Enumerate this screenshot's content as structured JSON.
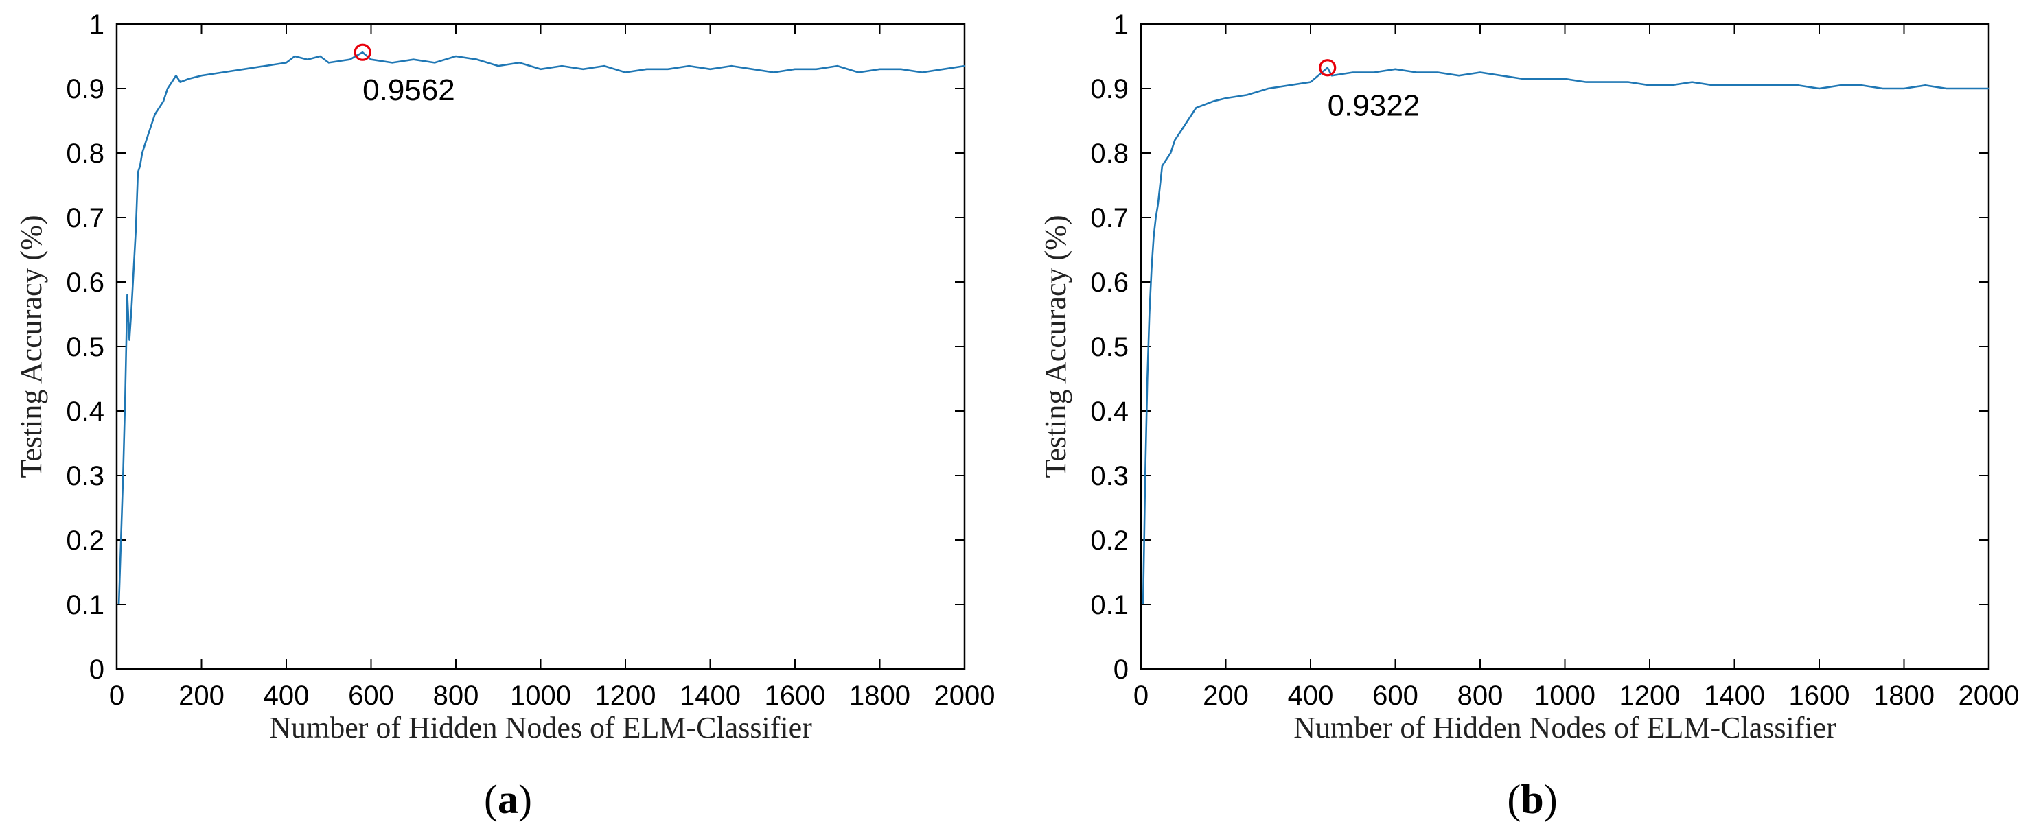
{
  "chart_data": [
    {
      "type": "line",
      "panel": "a",
      "caption": "(a)",
      "xlabel": "Number of Hidden Nodes of ELM-Classifier",
      "ylabel": "Testing Accuracy (%)",
      "xlim": [
        0,
        2000
      ],
      "ylim": [
        0,
        1
      ],
      "xticks": [
        0,
        200,
        400,
        600,
        800,
        1000,
        1200,
        1400,
        1600,
        1800,
        2000
      ],
      "yticks": [
        0,
        0.1,
        0.2,
        0.3,
        0.4,
        0.5,
        0.6,
        0.7,
        0.8,
        0.9,
        1
      ],
      "xtick_labels": [
        "0",
        "200",
        "400",
        "600",
        "800",
        "1000",
        "1200",
        "1400",
        "1600",
        "1800",
        "2000"
      ],
      "ytick_labels": [
        "0",
        "0.1",
        "0.2",
        "0.3",
        "0.4",
        "0.5",
        "0.6",
        "0.7",
        "0.8",
        "0.9",
        "1"
      ],
      "grid": false,
      "line_color": "#1f77b4",
      "marker_color": "#e8000b",
      "peak": {
        "x": 580,
        "y": 0.9562,
        "label": "0.9562"
      },
      "series": [
        {
          "x": [
            5,
            10,
            15,
            20,
            25,
            30,
            35,
            40,
            45,
            50,
            55,
            60,
            70,
            80,
            90,
            100,
            110,
            120,
            130,
            140,
            150,
            170,
            200,
            250,
            300,
            350,
            400,
            420,
            450,
            480,
            500,
            550,
            580,
            600,
            650,
            700,
            750,
            800,
            850,
            900,
            950,
            1000,
            1050,
            1100,
            1150,
            1200,
            1250,
            1300,
            1350,
            1400,
            1450,
            1500,
            1550,
            1600,
            1650,
            1700,
            1750,
            1800,
            1850,
            1900,
            1950,
            2000
          ],
          "y": [
            0.1,
            0.2,
            0.3,
            0.42,
            0.58,
            0.51,
            0.56,
            0.62,
            0.68,
            0.77,
            0.78,
            0.8,
            0.82,
            0.84,
            0.86,
            0.87,
            0.88,
            0.9,
            0.91,
            0.92,
            0.91,
            0.915,
            0.92,
            0.925,
            0.93,
            0.935,
            0.94,
            0.95,
            0.945,
            0.95,
            0.94,
            0.945,
            0.9562,
            0.945,
            0.94,
            0.945,
            0.94,
            0.95,
            0.945,
            0.935,
            0.94,
            0.93,
            0.935,
            0.93,
            0.935,
            0.925,
            0.93,
            0.93,
            0.935,
            0.93,
            0.935,
            0.93,
            0.925,
            0.93,
            0.93,
            0.935,
            0.925,
            0.93,
            0.93,
            0.925,
            0.93,
            0.935
          ]
        }
      ]
    },
    {
      "type": "line",
      "panel": "b",
      "caption": "(b)",
      "xlabel": "Number of Hidden Nodes of ELM-Classifier",
      "ylabel": "Testing Accuracy (%)",
      "xlim": [
        0,
        2000
      ],
      "ylim": [
        0,
        1
      ],
      "xticks": [
        0,
        200,
        400,
        600,
        800,
        1000,
        1200,
        1400,
        1600,
        1800,
        2000
      ],
      "yticks": [
        0,
        0.1,
        0.2,
        0.3,
        0.4,
        0.5,
        0.6,
        0.7,
        0.8,
        0.9,
        1
      ],
      "xtick_labels": [
        "0",
        "200",
        "400",
        "600",
        "800",
        "1000",
        "1200",
        "1400",
        "1600",
        "1800",
        "2000"
      ],
      "ytick_labels": [
        "0",
        "0.1",
        "0.2",
        "0.3",
        "0.4",
        "0.5",
        "0.6",
        "0.7",
        "0.8",
        "0.9",
        "1"
      ],
      "grid": false,
      "line_color": "#1f77b4",
      "marker_color": "#e8000b",
      "peak": {
        "x": 440,
        "y": 0.9322,
        "label": "0.9322"
      },
      "series": [
        {
          "x": [
            5,
            10,
            15,
            20,
            25,
            30,
            35,
            40,
            50,
            60,
            70,
            80,
            90,
            100,
            110,
            120,
            130,
            150,
            170,
            200,
            250,
            300,
            350,
            400,
            440,
            450,
            500,
            550,
            600,
            650,
            700,
            750,
            800,
            850,
            900,
            950,
            1000,
            1050,
            1100,
            1150,
            1200,
            1250,
            1300,
            1350,
            1400,
            1450,
            1500,
            1550,
            1600,
            1650,
            1700,
            1750,
            1800,
            1850,
            1900,
            1950,
            2000
          ],
          "y": [
            0.1,
            0.3,
            0.45,
            0.55,
            0.62,
            0.67,
            0.7,
            0.72,
            0.78,
            0.79,
            0.8,
            0.82,
            0.83,
            0.84,
            0.85,
            0.86,
            0.87,
            0.875,
            0.88,
            0.885,
            0.89,
            0.9,
            0.905,
            0.91,
            0.9322,
            0.92,
            0.925,
            0.925,
            0.93,
            0.925,
            0.925,
            0.92,
            0.925,
            0.92,
            0.915,
            0.915,
            0.915,
            0.91,
            0.91,
            0.91,
            0.905,
            0.905,
            0.91,
            0.905,
            0.905,
            0.905,
            0.905,
            0.905,
            0.9,
            0.905,
            0.905,
            0.9,
            0.9,
            0.905,
            0.9,
            0.9,
            0.9
          ]
        }
      ]
    }
  ]
}
